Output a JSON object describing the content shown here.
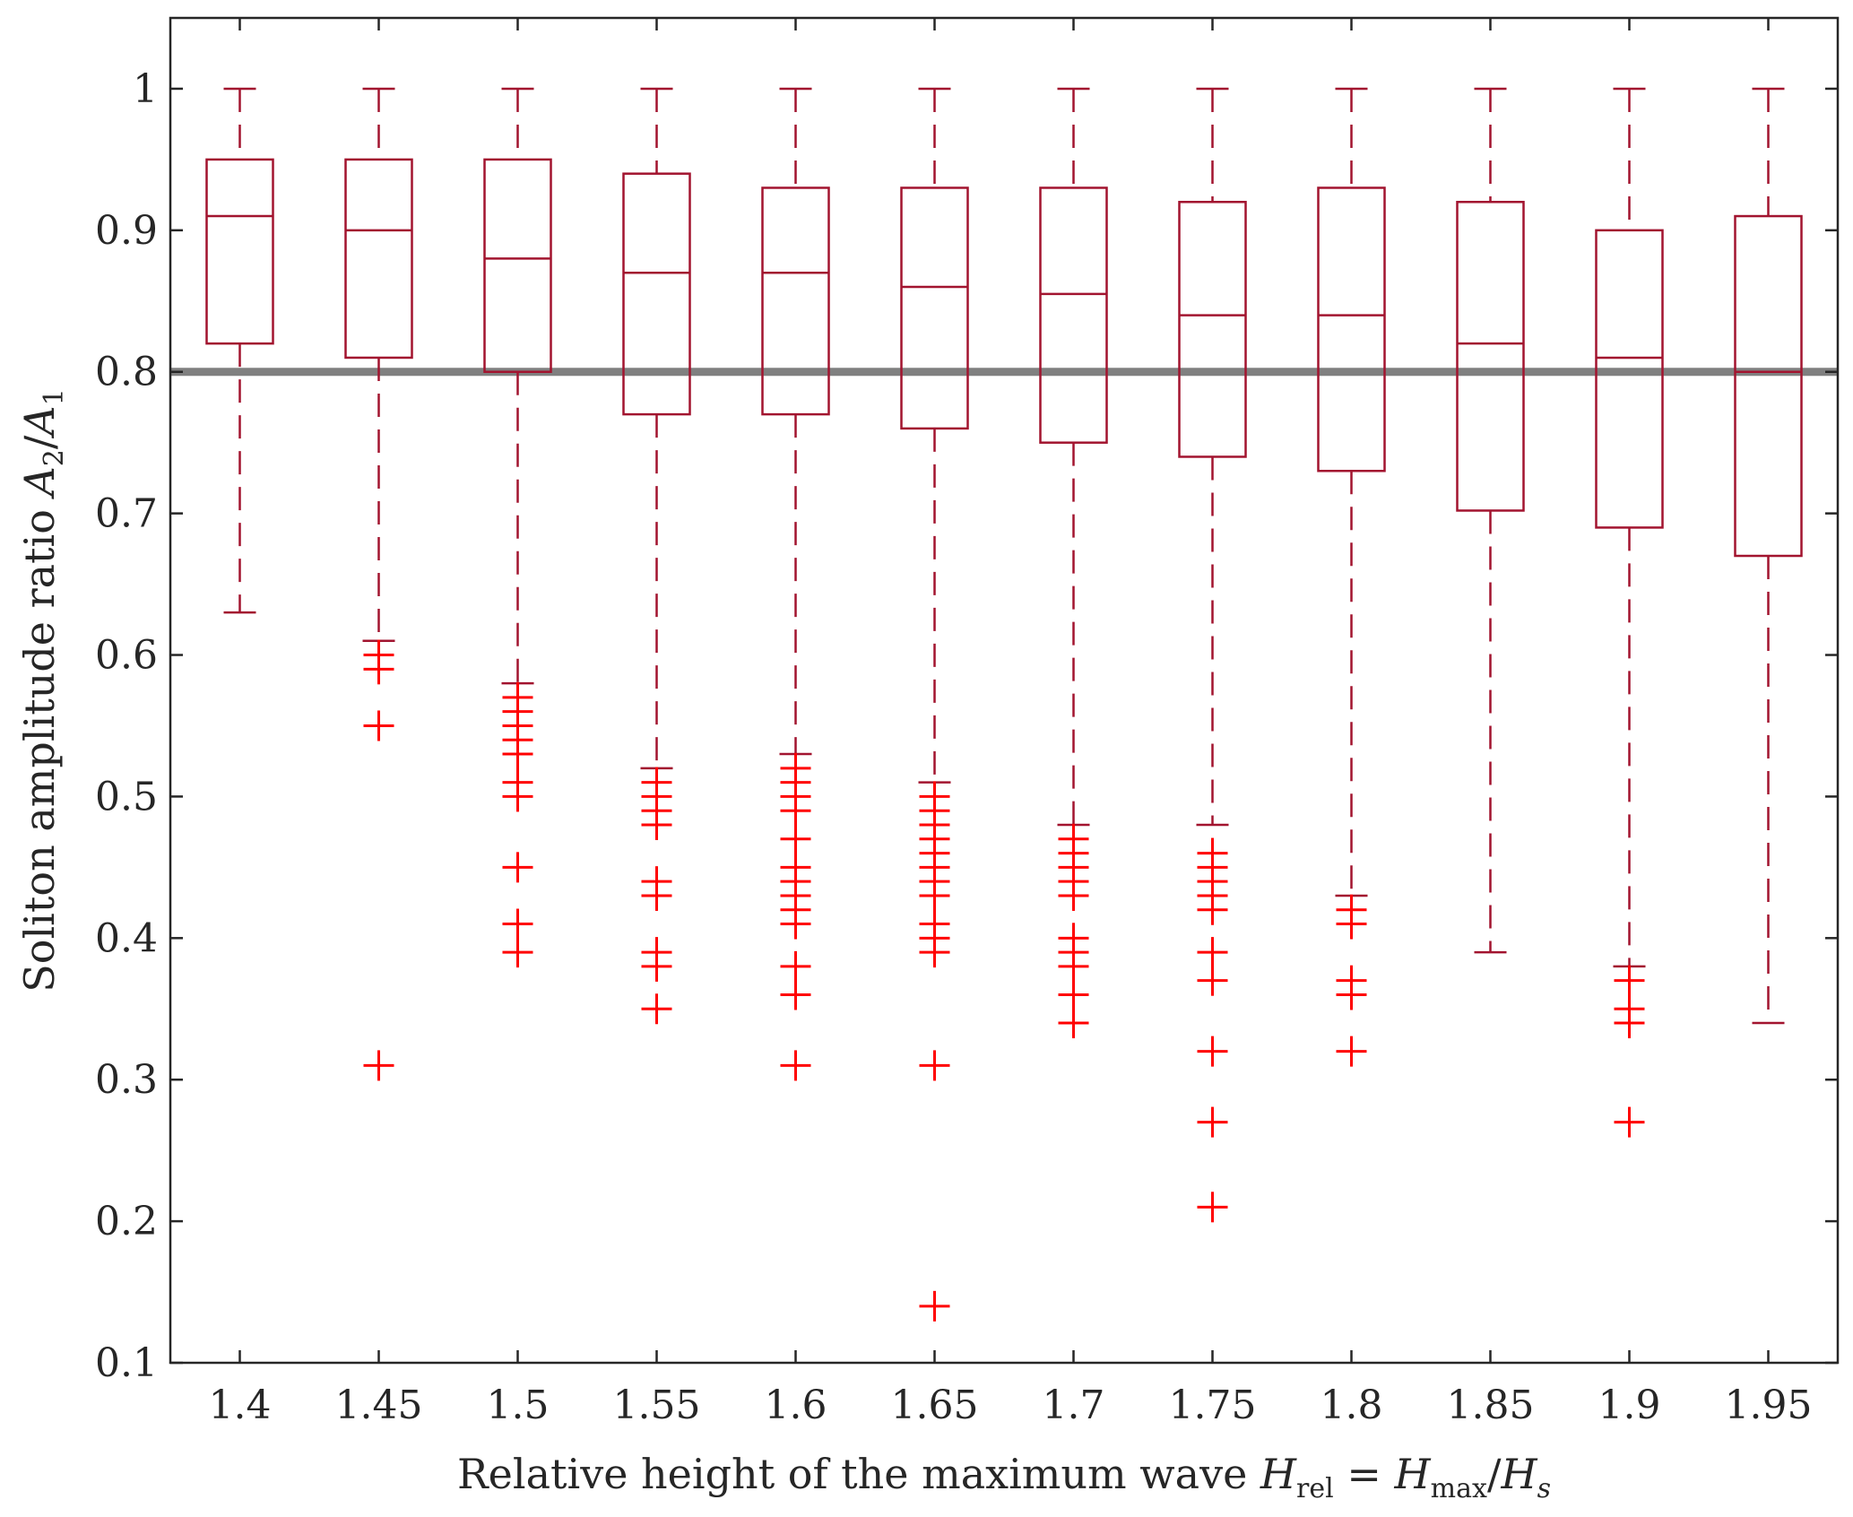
{
  "chart_data": {
    "type": "boxplot",
    "xlabel": "Relative height of the maximum wave H_rel = H_max/H_s",
    "xlabel_parts": {
      "text": "Relative height of the maximum wave ",
      "var1": "H",
      "sub1": "rel",
      "eq": " = ",
      "var2": "H",
      "sub2": "max",
      "slash": "/",
      "var3": "H",
      "sub3": "s"
    },
    "ylabel": "Soliton amplitude ratio A_2/A_1",
    "ylabel_parts": {
      "text": "Soliton amplitude ratio ",
      "var1": "A",
      "sub1": "2",
      "slash": "/",
      "var2": "A",
      "sub2": "1"
    },
    "ylim": [
      0.1,
      1.05
    ],
    "yticks": [
      "0.1",
      "0.2",
      "0.3",
      "0.4",
      "0.5",
      "0.6",
      "0.7",
      "0.8",
      "0.9",
      "1"
    ],
    "categories": [
      "1.4",
      "1.45",
      "1.5",
      "1.55",
      "1.6",
      "1.65",
      "1.7",
      "1.75",
      "1.8",
      "1.85",
      "1.9",
      "1.95"
    ],
    "reference_line": 0.8,
    "box_color": "#a2142f",
    "outlier_color": "#ff0000",
    "reference_color": "#808080",
    "boxes": [
      {
        "x": "1.4",
        "whisker_low": 0.63,
        "q1": 0.82,
        "median": 0.91,
        "q3": 0.95,
        "whisker_high": 1.0,
        "outliers": []
      },
      {
        "x": "1.45",
        "whisker_low": 0.61,
        "q1": 0.81,
        "median": 0.9,
        "q3": 0.95,
        "whisker_high": 1.0,
        "outliers": [
          0.6,
          0.59,
          0.55,
          0.31
        ]
      },
      {
        "x": "1.5",
        "whisker_low": 0.58,
        "q1": 0.8,
        "median": 0.88,
        "q3": 0.95,
        "whisker_high": 1.0,
        "outliers": [
          0.57,
          0.56,
          0.55,
          0.54,
          0.53,
          0.51,
          0.5,
          0.45,
          0.41,
          0.39
        ]
      },
      {
        "x": "1.55",
        "whisker_low": 0.52,
        "q1": 0.77,
        "median": 0.87,
        "q3": 0.94,
        "whisker_high": 1.0,
        "outliers": [
          0.51,
          0.5,
          0.49,
          0.48,
          0.44,
          0.43,
          0.39,
          0.38,
          0.35
        ]
      },
      {
        "x": "1.6",
        "whisker_low": 0.53,
        "q1": 0.77,
        "median": 0.87,
        "q3": 0.93,
        "whisker_high": 1.0,
        "outliers": [
          0.52,
          0.51,
          0.5,
          0.49,
          0.47,
          0.45,
          0.44,
          0.43,
          0.42,
          0.41,
          0.38,
          0.36,
          0.31
        ]
      },
      {
        "x": "1.65",
        "whisker_low": 0.51,
        "q1": 0.76,
        "median": 0.86,
        "q3": 0.93,
        "whisker_high": 1.0,
        "outliers": [
          0.5,
          0.49,
          0.48,
          0.47,
          0.46,
          0.45,
          0.44,
          0.43,
          0.41,
          0.4,
          0.39,
          0.31,
          0.14
        ]
      },
      {
        "x": "1.7",
        "whisker_low": 0.48,
        "q1": 0.75,
        "median": 0.855,
        "q3": 0.93,
        "whisker_high": 1.0,
        "outliers": [
          0.47,
          0.46,
          0.45,
          0.44,
          0.43,
          0.4,
          0.39,
          0.38,
          0.36,
          0.34
        ]
      },
      {
        "x": "1.75",
        "whisker_low": 0.48,
        "q1": 0.74,
        "median": 0.84,
        "q3": 0.92,
        "whisker_high": 1.0,
        "outliers": [
          0.46,
          0.45,
          0.44,
          0.43,
          0.42,
          0.39,
          0.37,
          0.32,
          0.27,
          0.21
        ]
      },
      {
        "x": "1.8",
        "whisker_low": 0.43,
        "q1": 0.73,
        "median": 0.84,
        "q3": 0.93,
        "whisker_high": 1.0,
        "outliers": [
          0.42,
          0.41,
          0.37,
          0.36,
          0.32
        ]
      },
      {
        "x": "1.85",
        "whisker_low": 0.39,
        "q1": 0.702,
        "median": 0.82,
        "q3": 0.92,
        "whisker_high": 1.0,
        "outliers": []
      },
      {
        "x": "1.9",
        "whisker_low": 0.38,
        "q1": 0.69,
        "median": 0.81,
        "q3": 0.9,
        "whisker_high": 1.0,
        "outliers": [
          0.37,
          0.35,
          0.34,
          0.27
        ]
      },
      {
        "x": "1.95",
        "whisker_low": 0.34,
        "q1": 0.67,
        "median": 0.8,
        "q3": 0.91,
        "whisker_high": 1.0,
        "outliers": []
      }
    ]
  }
}
